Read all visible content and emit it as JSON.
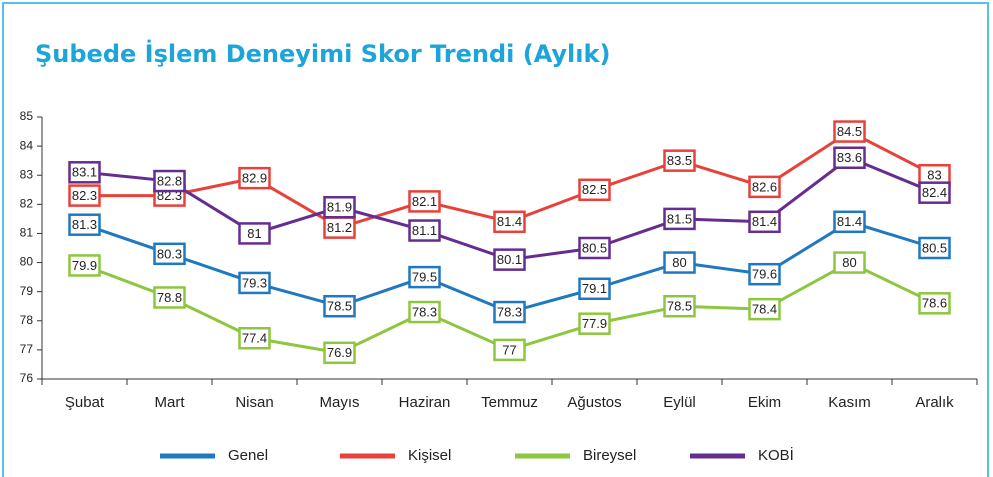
{
  "chart_data": {
    "type": "line",
    "title": "Şubede İşlem Deneyimi Skor Trendi (Aylık)",
    "categories": [
      "Şubat",
      "Mart",
      "Nisan",
      "Mayıs",
      "Haziran",
      "Temmuz",
      "Ağustos",
      "Eylül",
      "Ekim",
      "Kasım",
      "Aralık"
    ],
    "series": [
      {
        "name": "Genel",
        "color": "#2079c0",
        "values": [
          81.3,
          80.3,
          79.3,
          78.5,
          79.5,
          78.3,
          79.1,
          80,
          79.6,
          81.4,
          80.5
        ]
      },
      {
        "name": "Kişisel",
        "color": "#e8413a",
        "values": [
          82.3,
          82.3,
          82.9,
          81.2,
          82.1,
          81.4,
          82.5,
          83.5,
          82.6,
          84.5,
          83
        ]
      },
      {
        "name": "Bireysel",
        "color": "#8dc63f",
        "values": [
          79.9,
          78.8,
          77.4,
          76.9,
          78.3,
          77,
          77.9,
          78.5,
          78.4,
          80,
          78.6
        ]
      },
      {
        "name": "KOBİ",
        "color": "#662d91",
        "values": [
          83.1,
          82.8,
          81,
          81.9,
          81.1,
          80.1,
          80.5,
          81.5,
          81.4,
          83.6,
          82.4
        ]
      }
    ],
    "ylim": [
      76,
      85
    ],
    "yticks": [
      76,
      77,
      78,
      79,
      80,
      81,
      82,
      83,
      84,
      85
    ],
    "legend": "bottom"
  }
}
